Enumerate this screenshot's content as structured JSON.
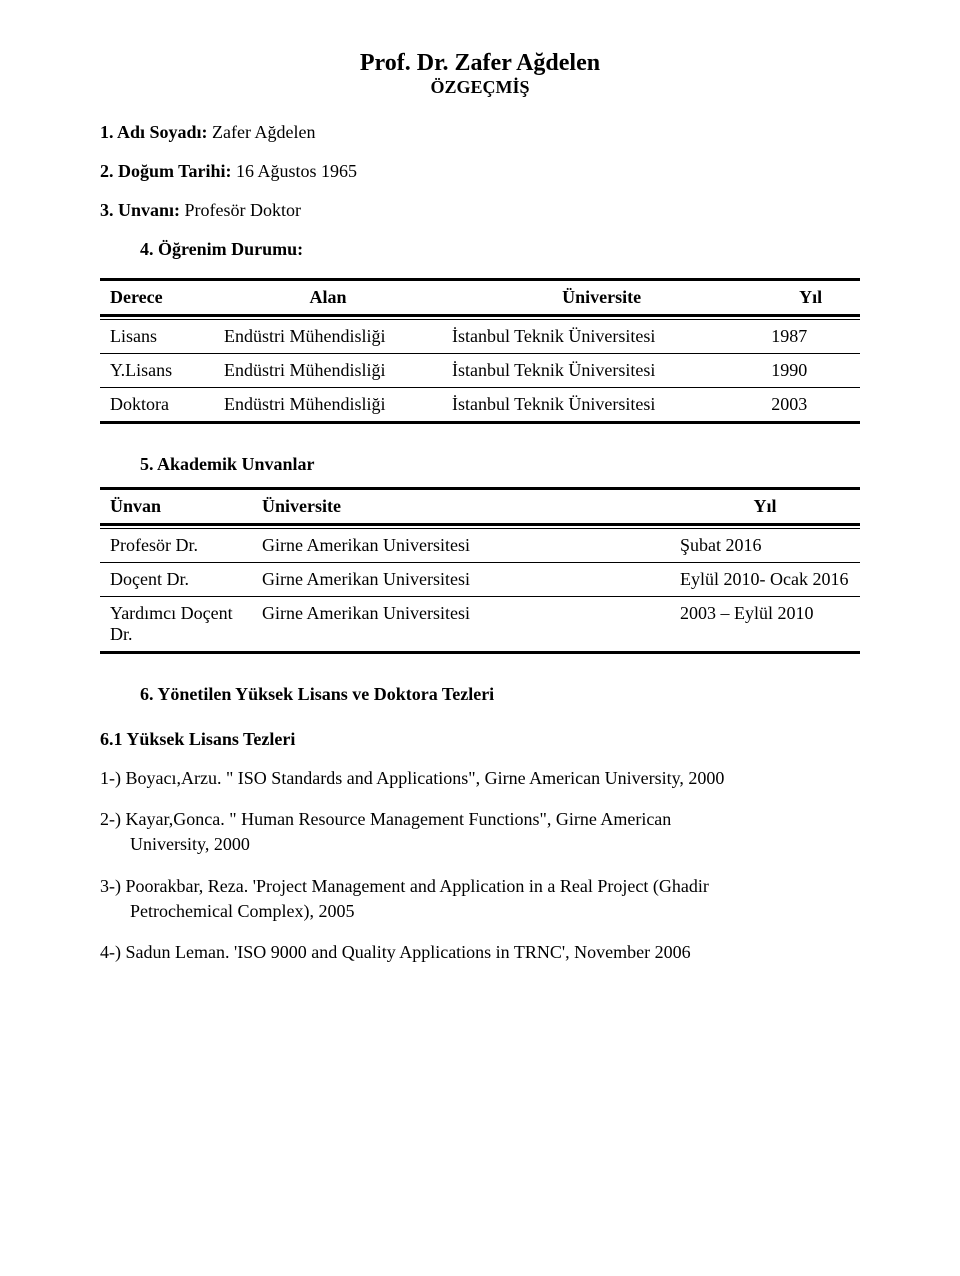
{
  "header": {
    "title": "Prof. Dr. Zafer Ağdelen",
    "subtitle": "ÖZGEÇMİŞ"
  },
  "info": {
    "line1_label": "1. Adı Soyadı:",
    "line1_value": " Zafer Ağdelen",
    "line2_label": "2. Doğum Tarihi:",
    "line2_value": " 16 Ağustos 1965",
    "line3_label": "3. Unvanı:",
    "line3_value": " Profesör  Doktor",
    "line4": "4. Öğrenim Durumu:"
  },
  "education": {
    "headers": {
      "c1": "Derece",
      "c2": "Alan",
      "c3": "Üniversite",
      "c4": "Yıl"
    },
    "rows": [
      {
        "c1": "Lisans",
        "c2": "Endüstri Mühendisliği",
        "c3": "İstanbul Teknik Üniversitesi",
        "c4": "1987"
      },
      {
        "c1": "Y.Lisans",
        "c2": "Endüstri Mühendisliği",
        "c3": "İstanbul Teknik Üniversitesi",
        "c4": "1990"
      },
      {
        "c1": "Doktora",
        "c2": "Endüstri Mühendisliği",
        "c3": "İstanbul Teknik Üniversitesi",
        "c4": "2003"
      }
    ]
  },
  "titles_section_heading": "5. Akademik Unvanlar",
  "titles": {
    "headers": {
      "c1": "Ünvan",
      "c2": "Üniversite",
      "c3": "Yıl"
    },
    "rows": [
      {
        "c1": "Profesör Dr.",
        "c2": "Girne Amerikan Universitesi",
        "c3": "Şubat 2016"
      },
      {
        "c1": "Doçent Dr.",
        "c2": "Girne Amerikan Universitesi",
        "c3": "Eylül 2010- Ocak 2016"
      },
      {
        "c1": "Yardımcı Doçent  Dr.",
        "c2": " Girne Amerikan Universitesi",
        "c3": "2003 – Eylül 2010"
      }
    ]
  },
  "thesis_heading": "6. Yönetilen Yüksek Lisans ve Doktora Tezleri",
  "thesis_sub_heading": "6.1  Yüksek Lisans Tezleri",
  "theses": [
    {
      "first": "1-) Boyacı,Arzu. \" ISO Standards and Applications\", Girne American University, 2000",
      "cont": ""
    },
    {
      "first": "2-) Kayar,Gonca. \" Human Resource Management Functions\", Girne American",
      "cont": "University, 2000"
    },
    {
      "first": "3-) Poorakbar, Reza. 'Project Management and Application in a Real Project (Ghadir",
      "cont": "Petrochemical Complex), 2005"
    },
    {
      "first": "4-) Sadun Leman. 'ISO 9000 and Quality Applications in TRNC', November 2006",
      "cont": ""
    }
  ]
}
